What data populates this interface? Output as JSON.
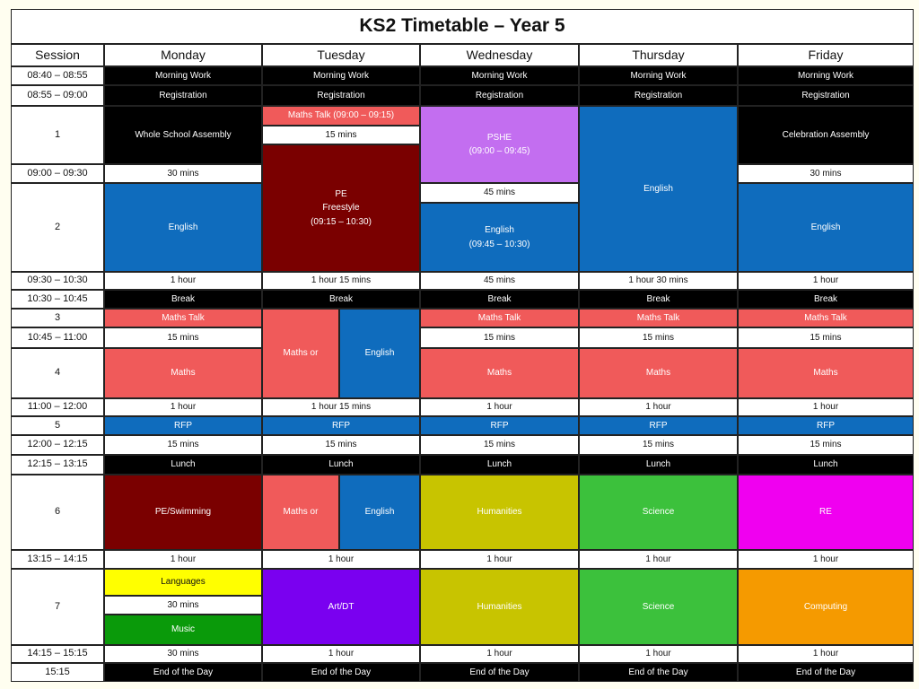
{
  "title": "KS2 Timetable – Year 5",
  "headers": [
    "Session",
    "Monday",
    "Tuesday",
    "Wednesday",
    "Thursday",
    "Friday"
  ],
  "times": {
    "t1": "08:40 – 08:55",
    "t2": "08:55 – 09:00",
    "s1": "1",
    "t3": "09:00 – 09:30",
    "s2": "2",
    "t4": "09:30 – 10:30",
    "t5": "10:30 – 10:45",
    "s3": "3",
    "t6": "10:45 – 11:00",
    "s4": "4",
    "t7": "11:00 – 12:00",
    "s5": "5",
    "t8": "12:00 – 12:15",
    "t9": "12:15 – 13:15",
    "s6": "6",
    "t10": "13:15 – 14:15",
    "s7": "7",
    "t11": "14:15 – 15:15",
    "t12": "15:15"
  },
  "colors": {
    "black": "#000000",
    "blue": "#0f6cbd",
    "maroon": "#7a0000",
    "coral": "#f05a5a",
    "violet": "#c36ef0",
    "olive": "#c8c400",
    "green": "#3cc13c",
    "magenta": "#f000f0",
    "purple": "#7a00f0",
    "orange": "#f59a00",
    "yellow": "#ffff00",
    "dkgreen": "#0a9a0a"
  },
  "cells": {
    "mw": "Morning Work",
    "reg": "Registration",
    "assembly": "Whole School Assembly",
    "maths_talk_tue": "Maths Talk (09:00 – 09:15)",
    "min15": "15 mins",
    "pshe": "PSHE\n(09:00 – 09:45)",
    "celebration": "Celebration Assembly",
    "min30": "30 mins",
    "pe": "PE\nFreestyle\n(09:15 – 10:30)",
    "min45": "45 mins",
    "english": "English",
    "english_wed": "English\n(09:45 – 10:30)",
    "hour1": "1 hour",
    "hour1_15": "1 hour 15 mins",
    "hour1_30": "1 hour 30 mins",
    "brk": "Break",
    "maths_talk": "Maths Talk",
    "maths_or": "Maths or",
    "maths": "Maths",
    "rfp": "RFP",
    "lunch": "Lunch",
    "pe_swim": "PE/Swimming",
    "humanities": "Humanities",
    "science": "Science",
    "re": "RE",
    "languages": "Languages",
    "music": "Music",
    "artdt": "Art/DT",
    "computing": "Computing",
    "end": "End of the Day"
  }
}
